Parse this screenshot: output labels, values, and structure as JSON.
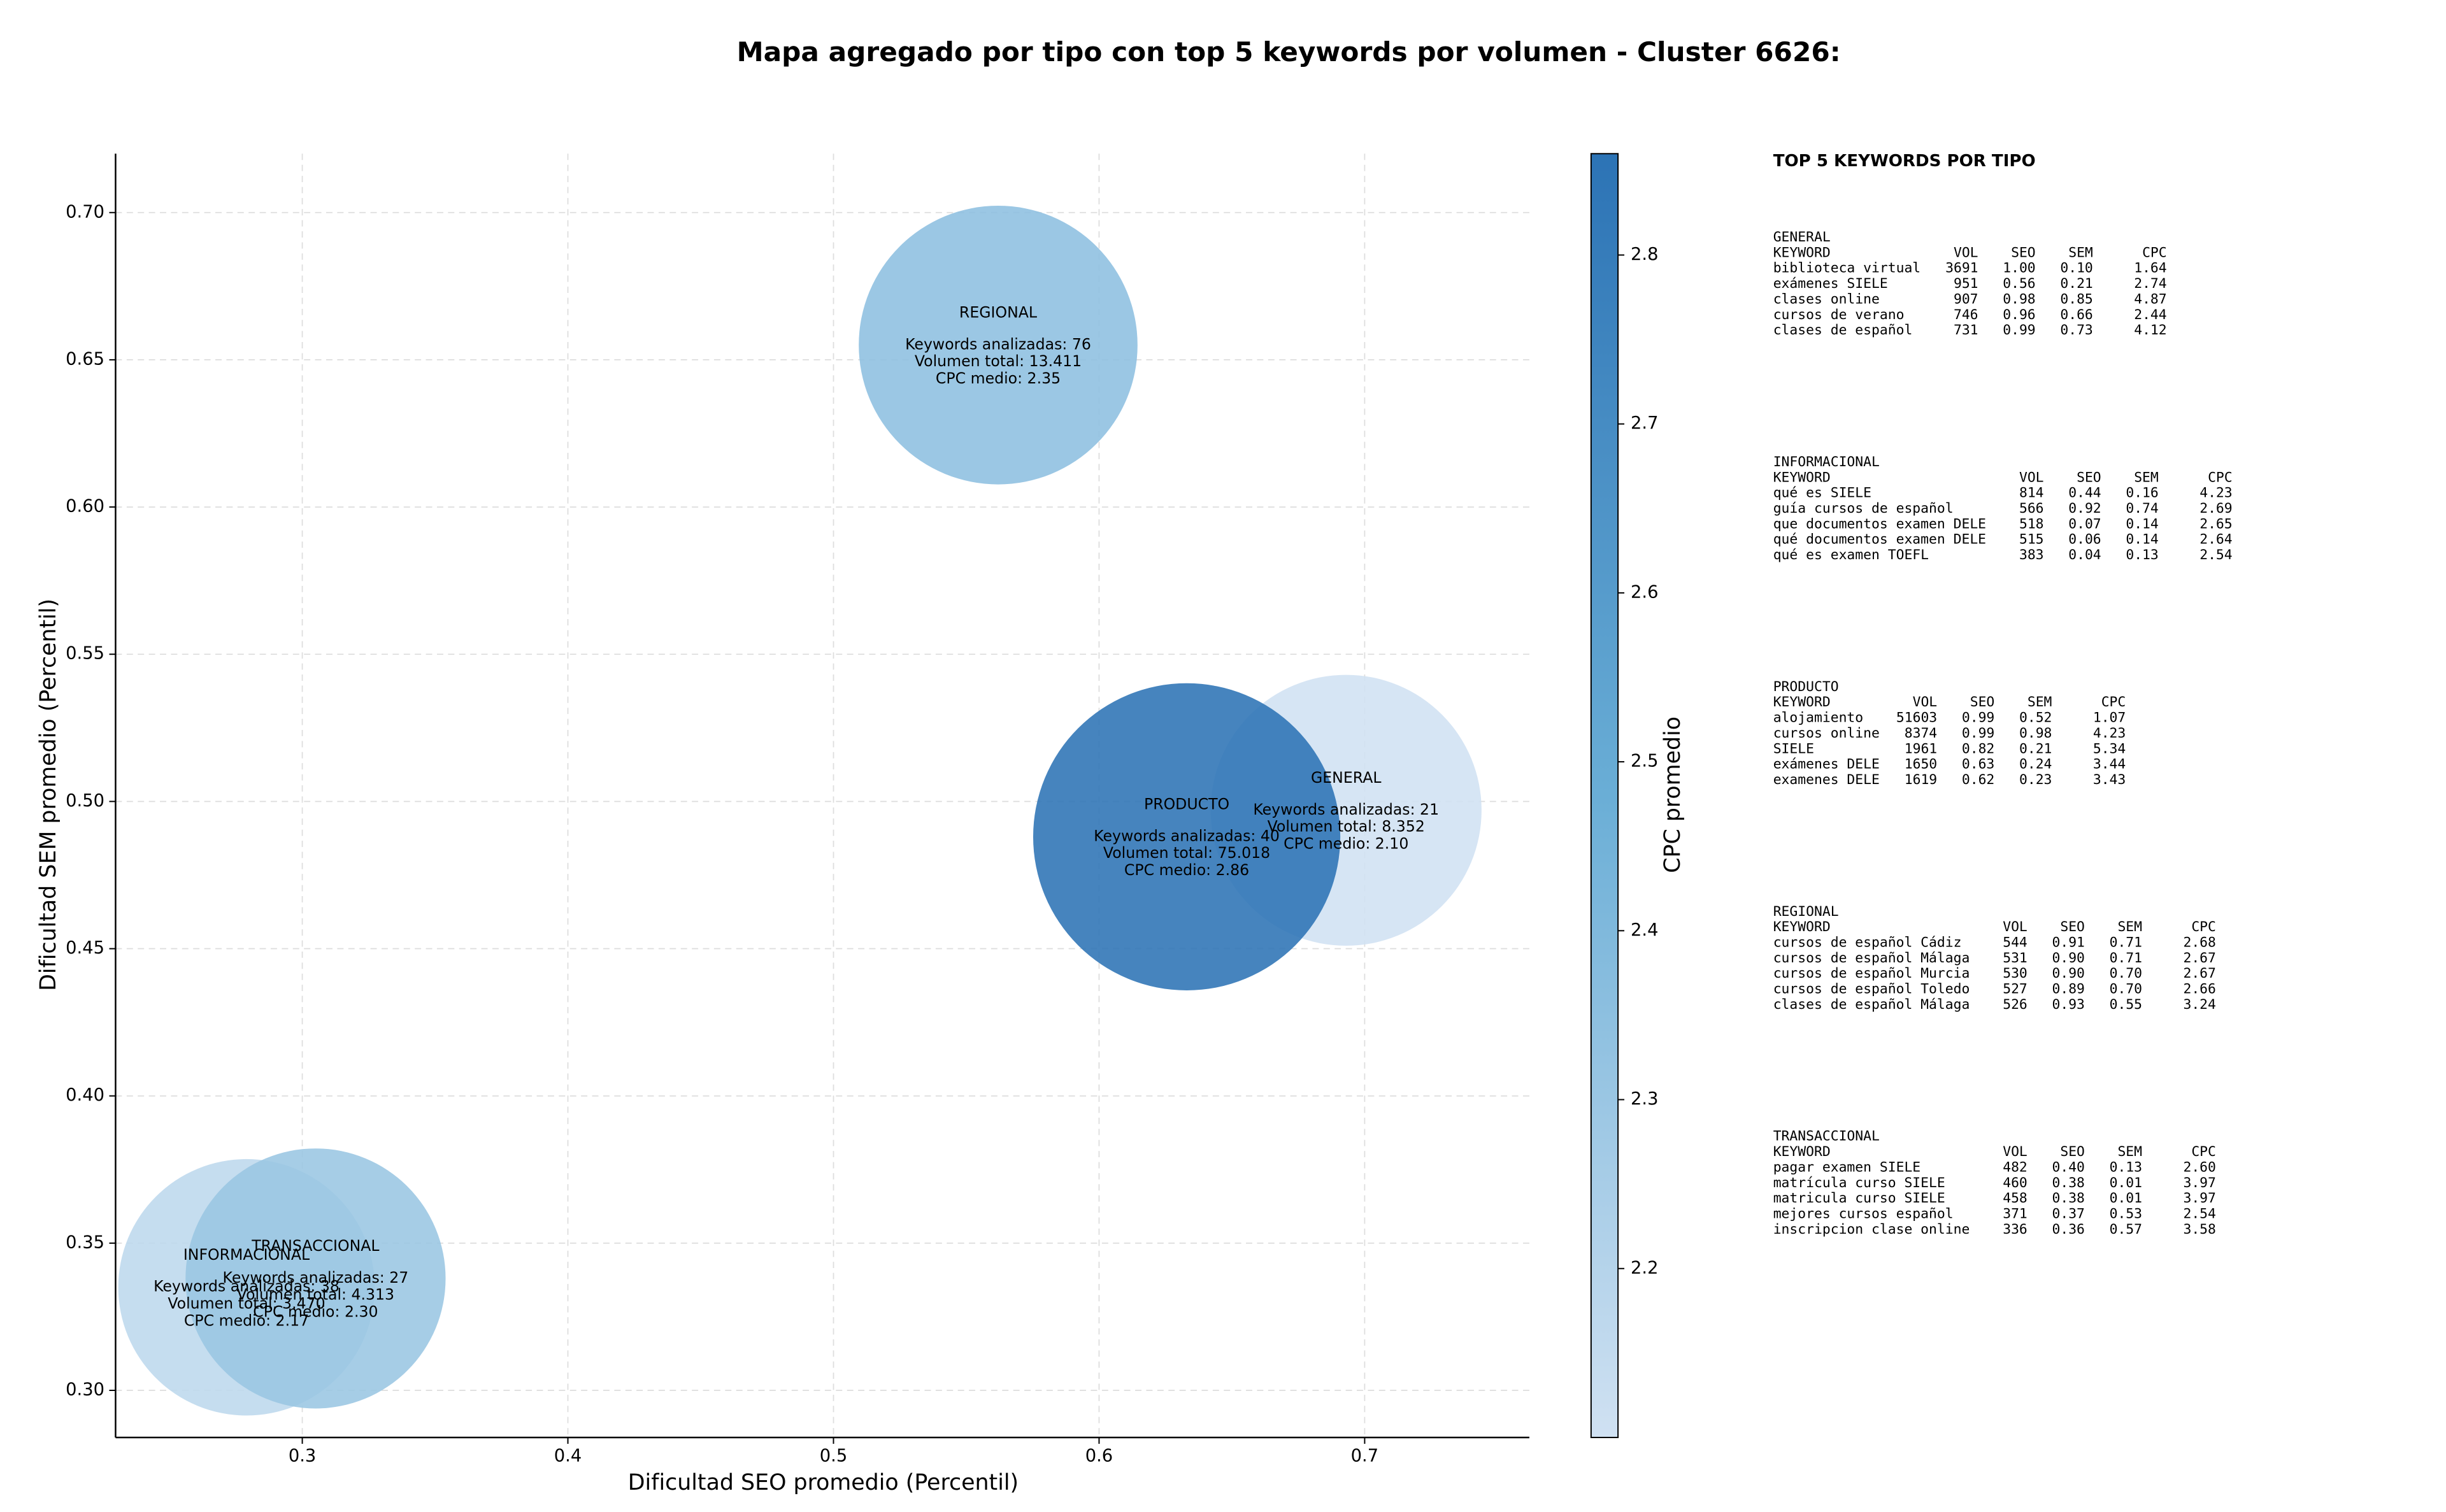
{
  "chart_data": {
    "type": "bubble",
    "title": "Mapa agregado por tipo con top 5 keywords por volumen - Cluster 6626:",
    "xlabel": "Dificultad SEO promedio (Percentil)",
    "ylabel": "Dificultad SEM promedio (Percentil)",
    "xlim": [
      0.2297,
      0.762
    ],
    "ylim": [
      0.284,
      0.72
    ],
    "xticks": [
      0.3,
      0.4,
      0.5,
      0.6,
      0.7
    ],
    "yticks": [
      {
        "value": 0.3,
        "label": "0.30"
      },
      0.35,
      {
        "value": 0.4,
        "label": "0.40"
      },
      0.45,
      {
        "value": 0.5,
        "label": "0.50"
      },
      0.55,
      {
        "value": 0.6,
        "label": "0.60"
      },
      0.65,
      {
        "value": 0.7,
        "label": "0.70"
      }
    ],
    "grid": true,
    "colorbar": {
      "label": "CPC promedio",
      "lim": [
        2.1,
        2.86
      ],
      "ticks": [
        2.2,
        2.3,
        2.4,
        2.5,
        2.6,
        2.7,
        2.8
      ],
      "colormap": [
        "#d0e1f2",
        "#6aaed6",
        "#2c73b5"
      ]
    },
    "series": [
      {
        "name": "GENERAL",
        "x": 0.693,
        "y": 0.497,
        "cpc": 2.1,
        "volume": 8352,
        "lines": [
          "Keywords analizadas: 21",
          "Volumen total: 8.352",
          "CPC medio: 2.10"
        ]
      },
      {
        "name": "INFORMACIONAL",
        "x": 0.279,
        "y": 0.335,
        "cpc": 2.17,
        "volume": 3470,
        "lines": [
          "Keywords analizadas: 38",
          "Volumen total: 3.470",
          "CPC medio: 2.17"
        ]
      },
      {
        "name": "PRODUCTO",
        "x": 0.633,
        "y": 0.488,
        "cpc": 2.86,
        "volume": 75018,
        "lines": [
          "Keywords analizadas: 40",
          "Volumen total: 75.018",
          "CPC medio: 2.86"
        ]
      },
      {
        "name": "REGIONAL",
        "x": 0.562,
        "y": 0.655,
        "cpc": 2.35,
        "volume": 13411,
        "lines": [
          "Keywords analizadas: 76",
          "Volumen total: 13.411",
          "CPC medio: 2.35"
        ]
      },
      {
        "name": "TRANSACCIONAL",
        "x": 0.305,
        "y": 0.338,
        "cpc": 2.3,
        "volume": 4313,
        "lines": [
          "Keywords analizadas: 27",
          "Volumen total: 4.313",
          "CPC medio: 2.30"
        ]
      }
    ]
  },
  "keywords_panel": {
    "title": "TOP 5 KEYWORDS POR TIPO",
    "groups": [
      {
        "name": "GENERAL",
        "header": [
          "KEYWORD",
          "VOL",
          "SEO",
          "SEM",
          "CPC"
        ],
        "rows": [
          [
            "biblioteca virtual",
            "3691",
            "1.00",
            "0.10",
            "1.64"
          ],
          [
            "exámenes SIELE",
            "951",
            "0.56",
            "0.21",
            "2.74"
          ],
          [
            "clases online",
            "907",
            "0.98",
            "0.85",
            "4.87"
          ],
          [
            "cursos de verano",
            "746",
            "0.96",
            "0.66",
            "2.44"
          ],
          [
            "clases de español",
            "731",
            "0.99",
            "0.73",
            "4.12"
          ]
        ]
      },
      {
        "name": "INFORMACIONAL",
        "header": [
          "KEYWORD",
          "VOL",
          "SEO",
          "SEM",
          "CPC"
        ],
        "rows": [
          [
            "qué es SIELE",
            "814",
            "0.44",
            "0.16",
            "4.23"
          ],
          [
            "guía cursos de español",
            "566",
            "0.92",
            "0.74",
            "2.69"
          ],
          [
            "que documentos examen DELE",
            "518",
            "0.07",
            "0.14",
            "2.65"
          ],
          [
            "qué documentos examen DELE",
            "515",
            "0.06",
            "0.14",
            "2.64"
          ],
          [
            "qué es examen TOEFL",
            "383",
            "0.04",
            "0.13",
            "2.54"
          ]
        ]
      },
      {
        "name": "PRODUCTO",
        "header": [
          "KEYWORD",
          "VOL",
          "SEO",
          "SEM",
          "CPC"
        ],
        "rows": [
          [
            "alojamiento",
            "51603",
            "0.99",
            "0.52",
            "1.07"
          ],
          [
            "cursos online",
            "8374",
            "0.99",
            "0.98",
            "4.23"
          ],
          [
            "SIELE",
            "1961",
            "0.82",
            "0.21",
            "5.34"
          ],
          [
            "exámenes DELE",
            "1650",
            "0.63",
            "0.24",
            "3.44"
          ],
          [
            "examenes DELE",
            "1619",
            "0.62",
            "0.23",
            "3.43"
          ]
        ]
      },
      {
        "name": "REGIONAL",
        "header": [
          "KEYWORD",
          "VOL",
          "SEO",
          "SEM",
          "CPC"
        ],
        "rows": [
          [
            "cursos de español Cádiz",
            "544",
            "0.91",
            "0.71",
            "2.68"
          ],
          [
            "cursos de español Málaga",
            "531",
            "0.90",
            "0.71",
            "2.67"
          ],
          [
            "cursos de español Murcia",
            "530",
            "0.90",
            "0.70",
            "2.67"
          ],
          [
            "cursos de español Toledo",
            "527",
            "0.89",
            "0.70",
            "2.66"
          ],
          [
            "clases de español Málaga",
            "526",
            "0.93",
            "0.55",
            "3.24"
          ]
        ]
      },
      {
        "name": "TRANSACCIONAL",
        "header": [
          "KEYWORD",
          "VOL",
          "SEO",
          "SEM",
          "CPC"
        ],
        "rows": [
          [
            "pagar examen SIELE",
            "482",
            "0.40",
            "0.13",
            "2.60"
          ],
          [
            "matrícula curso SIELE",
            "460",
            "0.38",
            "0.01",
            "3.97"
          ],
          [
            "matricula curso SIELE",
            "458",
            "0.38",
            "0.01",
            "3.97"
          ],
          [
            "mejores cursos español",
            "371",
            "0.37",
            "0.53",
            "2.54"
          ],
          [
            "inscripcion clase online",
            "336",
            "0.36",
            "0.57",
            "3.58"
          ]
        ]
      }
    ]
  }
}
